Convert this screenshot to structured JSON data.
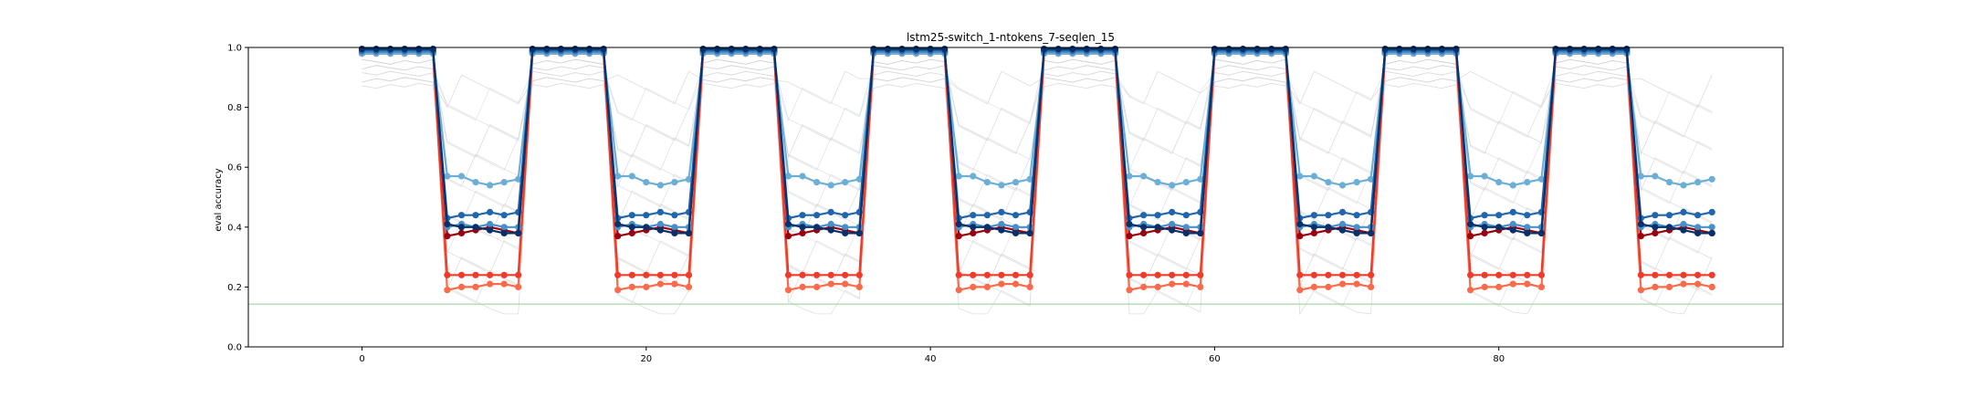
{
  "chart_data": {
    "type": "line",
    "title": "lstm25-switch_1-ntokens_7-seqlen_15",
    "xlabel": "",
    "ylabel": "eval accuracy",
    "xlim": [
      -8,
      100
    ],
    "ylim": [
      0.0,
      1.0
    ],
    "xticks": [
      "0",
      "20",
      "40",
      "60",
      "80"
    ],
    "xtick_values": [
      0,
      20,
      40,
      60,
      80
    ],
    "yticks": [
      "0.0",
      "0.2",
      "0.4",
      "0.6",
      "0.8",
      "1.0"
    ],
    "ytick_values": [
      0.0,
      0.2,
      0.4,
      0.6,
      0.8,
      1.0
    ],
    "grid": false,
    "legend": "none",
    "x": [
      0,
      1,
      2,
      3,
      4,
      5,
      6,
      7,
      8,
      9,
      10,
      11,
      12,
      13,
      14,
      15,
      16,
      17,
      18,
      19,
      20,
      21,
      22,
      23,
      24,
      25,
      26,
      27,
      28,
      29,
      30,
      31,
      32,
      33,
      34,
      35,
      36,
      37,
      38,
      39,
      40,
      41,
      42,
      43,
      44,
      45,
      46,
      47,
      48,
      49,
      50,
      51,
      52,
      53,
      54,
      55,
      56,
      57,
      58,
      59,
      60,
      61,
      62,
      63,
      64,
      65,
      66,
      67,
      68,
      69,
      70,
      71,
      72,
      73,
      74,
      75,
      76,
      77,
      78,
      79,
      80,
      81,
      82,
      83,
      84,
      85,
      86,
      87,
      88,
      89,
      90,
      91,
      92,
      93,
      94,
      95
    ],
    "reference_line": {
      "y": 0.1429,
      "color": "#8fd18f"
    },
    "phases": {
      "period": 12,
      "on_length": 6
    },
    "series": [
      {
        "color": "#08306b",
        "on": 0.995,
        "off": [
          0.41,
          0.4,
          0.4,
          0.39,
          0.38,
          0.38
        ]
      },
      {
        "color": "#2166ac",
        "on": 0.99,
        "off": [
          0.43,
          0.44,
          0.44,
          0.45,
          0.44,
          0.45
        ]
      },
      {
        "color": "#4a90c8",
        "on": 0.985,
        "off": [
          0.4,
          0.41,
          0.4,
          0.41,
          0.4,
          0.4
        ]
      },
      {
        "color": "#6baed6",
        "on": 0.98,
        "off": [
          0.57,
          0.57,
          0.55,
          0.54,
          0.55,
          0.56
        ]
      },
      {
        "color": "#99000d",
        "on": 0.985,
        "off": [
          0.37,
          0.38,
          0.39,
          0.4,
          0.39,
          0.38
        ]
      },
      {
        "color": "#ef3b2c",
        "on": 0.98,
        "off": [
          0.24,
          0.24,
          0.24,
          0.24,
          0.24,
          0.24
        ]
      },
      {
        "color": "#fb6a4a",
        "on": 0.98,
        "off": [
          0.19,
          0.2,
          0.2,
          0.21,
          0.21,
          0.2
        ]
      }
    ]
  }
}
